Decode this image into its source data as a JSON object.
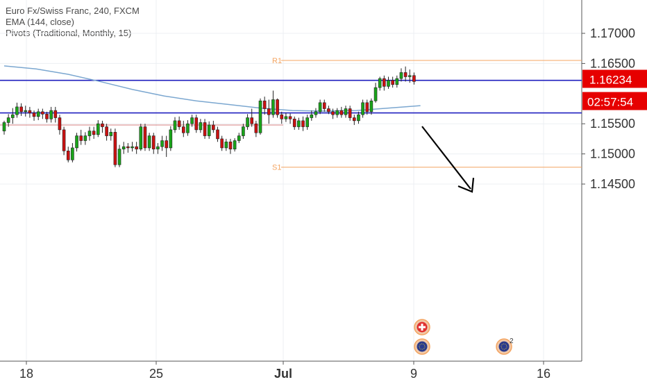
{
  "legend": {
    "symbol": "Euro Fx/Swiss Franc, 240, FXCM",
    "ema": "EMA (144, close)",
    "pivots": "Pivots (Traditional, Monthly, 15)"
  },
  "colors": {
    "up": "#19a519",
    "down": "#cc1111",
    "ema": "#7ba7d0",
    "hline": "#1f1fbf",
    "pivot": "#f4a460",
    "price_tag": "#e60000",
    "grid": "#eceff3",
    "axis_text": "#333333"
  },
  "chart_data": {
    "type": "candlestick",
    "yaxis": {
      "ticks": [
        "1.17000",
        "1.16500",
        "1.15500",
        "1.15000",
        "1.14500"
      ],
      "tick_values": [
        1.17,
        1.165,
        1.155,
        1.15,
        1.145
      ]
    },
    "xaxis": {
      "ticks": [
        "18",
        "25",
        "Jul",
        "9",
        "16"
      ]
    },
    "last_price": "1.16234",
    "countdown": "02:57:54",
    "pivot_levels": [
      {
        "label": "R1",
        "value": 1.1655
      },
      {
        "label": "S1",
        "value": 1.1478
      }
    ],
    "horizontal_lines": [
      1.1622,
      1.1568
    ],
    "ema": [
      [
        0,
        1.1646
      ],
      [
        10,
        1.1641
      ],
      [
        20,
        1.1632
      ],
      [
        30,
        1.162
      ],
      [
        40,
        1.1607
      ],
      [
        50,
        1.1596
      ],
      [
        60,
        1.1588
      ],
      [
        70,
        1.1582
      ],
      [
        80,
        1.1576
      ],
      [
        90,
        1.1572
      ],
      [
        100,
        1.1571
      ],
      [
        110,
        1.1572
      ],
      [
        120,
        1.1576
      ],
      [
        130,
        1.158
      ]
    ],
    "ema_end_index": 130,
    "candles": [
      [
        1.1538,
        1.1552,
        1.1532,
        1.1555
      ],
      [
        1.1552,
        1.156,
        1.1545,
        1.1566
      ],
      [
        1.156,
        1.1565,
        1.155,
        1.1576
      ],
      [
        1.1565,
        1.1578,
        1.156,
        1.1585
      ],
      [
        1.1578,
        1.157,
        1.1563,
        1.1584
      ],
      [
        1.157,
        1.1572,
        1.1562,
        1.158
      ],
      [
        1.1572,
        1.1568,
        1.156,
        1.1578
      ],
      [
        1.1568,
        1.1562,
        1.1555,
        1.1572
      ],
      [
        1.1562,
        1.157,
        1.1556,
        1.1575
      ],
      [
        1.157,
        1.1566,
        1.1558,
        1.1575
      ],
      [
        1.1566,
        1.1558,
        1.1552,
        1.157
      ],
      [
        1.1558,
        1.1572,
        1.1552,
        1.1578
      ],
      [
        1.1572,
        1.156,
        1.1552,
        1.1578
      ],
      [
        1.156,
        1.154,
        1.1532,
        1.1565
      ],
      [
        1.154,
        1.1505,
        1.1498,
        1.1545
      ],
      [
        1.1505,
        1.149,
        1.1486,
        1.1512
      ],
      [
        1.149,
        1.151,
        1.1486,
        1.1518
      ],
      [
        1.151,
        1.153,
        1.1504,
        1.1535
      ],
      [
        1.153,
        1.1522,
        1.1515,
        1.154
      ],
      [
        1.1522,
        1.153,
        1.1515,
        1.1536
      ],
      [
        1.153,
        1.1538,
        1.1522,
        1.1545
      ],
      [
        1.1538,
        1.1532,
        1.1525,
        1.1545
      ],
      [
        1.1532,
        1.155,
        1.1528,
        1.1556
      ],
      [
        1.155,
        1.1545,
        1.1535,
        1.1555
      ],
      [
        1.1545,
        1.153,
        1.1522,
        1.155
      ],
      [
        1.153,
        1.1536,
        1.1522,
        1.1542
      ],
      [
        1.1536,
        1.1482,
        1.1478,
        1.1542
      ],
      [
        1.1482,
        1.1508,
        1.1478,
        1.1515
      ],
      [
        1.1508,
        1.1512,
        1.15,
        1.152
      ],
      [
        1.1512,
        1.151,
        1.1502,
        1.1518
      ],
      [
        1.151,
        1.1512,
        1.1504,
        1.152
      ],
      [
        1.1512,
        1.1508,
        1.15,
        1.152
      ],
      [
        1.1508,
        1.1545,
        1.1505,
        1.155
      ],
      [
        1.1545,
        1.151,
        1.1505,
        1.155
      ],
      [
        1.151,
        1.153,
        1.1505,
        1.1535
      ],
      [
        1.153,
        1.1508,
        1.15,
        1.1535
      ],
      [
        1.1508,
        1.1512,
        1.15,
        1.1518
      ],
      [
        1.1512,
        1.1522,
        1.1505,
        1.153
      ],
      [
        1.1522,
        1.151,
        1.1495,
        1.153
      ],
      [
        1.151,
        1.154,
        1.1505,
        1.1546
      ],
      [
        1.154,
        1.1555,
        1.1535,
        1.1561
      ],
      [
        1.1555,
        1.1545,
        1.154,
        1.1562
      ],
      [
        1.1545,
        1.1535,
        1.1528,
        1.1555
      ],
      [
        1.1535,
        1.155,
        1.153,
        1.1556
      ],
      [
        1.155,
        1.156,
        1.1545,
        1.1565
      ],
      [
        1.156,
        1.154,
        1.1535,
        1.1565
      ],
      [
        1.154,
        1.1552,
        1.1535,
        1.1558
      ],
      [
        1.1552,
        1.153,
        1.1525,
        1.1558
      ],
      [
        1.153,
        1.1548,
        1.1525,
        1.1554
      ],
      [
        1.1548,
        1.154,
        1.1535,
        1.1555
      ],
      [
        1.154,
        1.1525,
        1.152,
        1.1545
      ],
      [
        1.1525,
        1.151,
        1.1505,
        1.153
      ],
      [
        1.151,
        1.152,
        1.1505,
        1.1525
      ],
      [
        1.152,
        1.1508,
        1.15,
        1.1525
      ],
      [
        1.1508,
        1.1522,
        1.1504,
        1.1526
      ],
      [
        1.1522,
        1.153,
        1.1518,
        1.1535
      ],
      [
        1.153,
        1.1545,
        1.1525,
        1.155
      ],
      [
        1.1545,
        1.156,
        1.154,
        1.1566
      ],
      [
        1.156,
        1.155,
        1.1545,
        1.1575
      ],
      [
        1.155,
        1.1535,
        1.1528,
        1.1555
      ],
      [
        1.1535,
        1.1588,
        1.1532,
        1.1592
      ],
      [
        1.1588,
        1.1575,
        1.1565,
        1.1595
      ],
      [
        1.1575,
        1.1565,
        1.155,
        1.159
      ],
      [
        1.1565,
        1.159,
        1.156,
        1.1605
      ],
      [
        1.159,
        1.1565,
        1.156,
        1.1592
      ],
      [
        1.1565,
        1.1558,
        1.155,
        1.157
      ],
      [
        1.1558,
        1.1562,
        1.1553,
        1.1568
      ],
      [
        1.1562,
        1.1558,
        1.155,
        1.1567
      ],
      [
        1.1558,
        1.1545,
        1.154,
        1.1562
      ],
      [
        1.1545,
        1.1555,
        1.154,
        1.156
      ],
      [
        1.1555,
        1.1545,
        1.1538,
        1.1562
      ],
      [
        1.1545,
        1.156,
        1.154,
        1.1565
      ],
      [
        1.156,
        1.1565,
        1.1555,
        1.1572
      ],
      [
        1.1565,
        1.157,
        1.156,
        1.1576
      ],
      [
        1.157,
        1.1585,
        1.1566,
        1.159
      ],
      [
        1.1585,
        1.1575,
        1.157,
        1.159
      ],
      [
        1.1575,
        1.157,
        1.1566,
        1.158
      ],
      [
        1.157,
        1.1565,
        1.1558,
        1.1575
      ],
      [
        1.1565,
        1.1572,
        1.156,
        1.1576
      ],
      [
        1.1572,
        1.1565,
        1.156,
        1.1578
      ],
      [
        1.1565,
        1.1575,
        1.156,
        1.158
      ],
      [
        1.1575,
        1.156,
        1.1555,
        1.158
      ],
      [
        1.156,
        1.1555,
        1.1548,
        1.1565
      ],
      [
        1.1555,
        1.1565,
        1.155,
        1.157
      ],
      [
        1.1565,
        1.1585,
        1.156,
        1.159
      ],
      [
        1.1585,
        1.157,
        1.1565,
        1.159
      ],
      [
        1.157,
        1.1588,
        1.1565,
        1.1592
      ],
      [
        1.1588,
        1.161,
        1.1585,
        1.1618
      ],
      [
        1.161,
        1.1625,
        1.1605,
        1.1628
      ],
      [
        1.1625,
        1.1612,
        1.1605,
        1.163
      ],
      [
        1.1612,
        1.1622,
        1.1608,
        1.1628
      ],
      [
        1.1622,
        1.1615,
        1.161,
        1.1628
      ],
      [
        1.1615,
        1.1625,
        1.161,
        1.163
      ],
      [
        1.1625,
        1.1635,
        1.162,
        1.1642
      ],
      [
        1.1635,
        1.1628,
        1.162,
        1.1645
      ],
      [
        1.1628,
        1.163,
        1.1618,
        1.164
      ],
      [
        1.163,
        1.162,
        1.1615,
        1.1635
      ]
    ]
  }
}
